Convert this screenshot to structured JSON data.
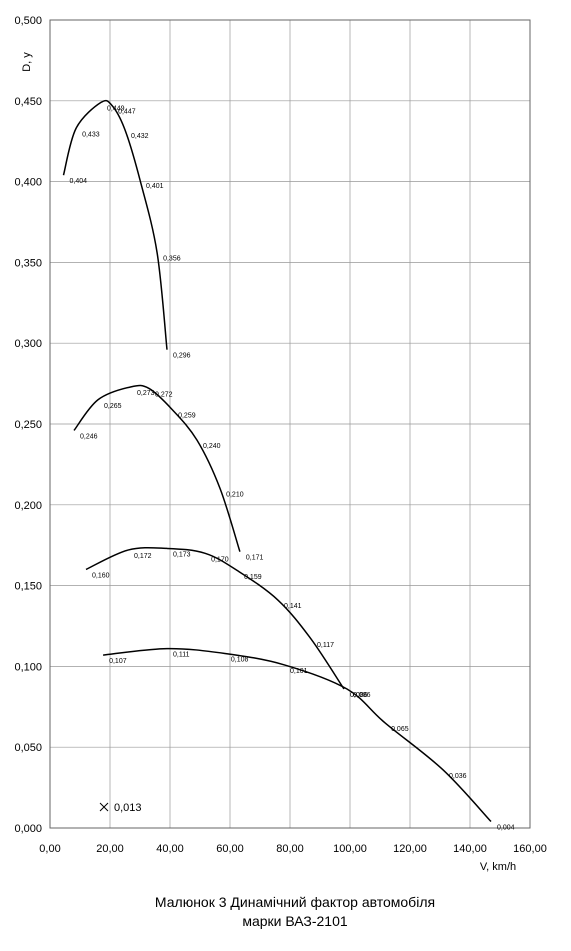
{
  "chart_data": {
    "type": "line",
    "xlabel": "V, km/h",
    "ylabel": "D, у",
    "caption": [
      "Малюнок 3 Динамічний фактор автомобіля",
      "марки ВАЗ-2101"
    ],
    "xlim": [
      0,
      160
    ],
    "ylim": [
      0,
      0.5
    ],
    "grid": true,
    "xticks": [
      {
        "value": 0,
        "label": "0,00"
      },
      {
        "value": 20,
        "label": "20,00"
      },
      {
        "value": 40,
        "label": "40,00"
      },
      {
        "value": 60,
        "label": "60,00"
      },
      {
        "value": 80,
        "label": "80,00"
      },
      {
        "value": 100,
        "label": "100,00"
      },
      {
        "value": 120,
        "label": "120,00"
      },
      {
        "value": 140,
        "label": "140,00"
      },
      {
        "value": 160,
        "label": "160,00"
      }
    ],
    "yticks": [
      {
        "value": 0,
        "label": "0,000"
      },
      {
        "value": 0.05,
        "label": "0,050"
      },
      {
        "value": 0.1,
        "label": "0,100"
      },
      {
        "value": 0.15,
        "label": "0,150"
      },
      {
        "value": 0.2,
        "label": "0,200"
      },
      {
        "value": 0.25,
        "label": "0,250"
      },
      {
        "value": 0.3,
        "label": "0,300"
      },
      {
        "value": 0.35,
        "label": "0,350"
      },
      {
        "value": 0.4,
        "label": "0,400"
      },
      {
        "value": 0.45,
        "label": "0,450"
      },
      {
        "value": 0.5,
        "label": "0,500"
      }
    ],
    "series": [
      {
        "color": "#000000",
        "x": [
          4.5,
          8.7,
          17,
          20.7,
          25,
          30,
          35.7,
          39
        ],
        "values": [
          0.404,
          0.433,
          0.449,
          0.447,
          0.432,
          0.401,
          0.356,
          0.296
        ],
        "value_labels": [
          "0,404",
          "0,433",
          "0,449",
          "0,447",
          "0,432",
          "0,401",
          "0,356",
          "0,296"
        ]
      },
      {
        "color": "#000000",
        "x": [
          8,
          16,
          27,
          33,
          40.7,
          49,
          56.7,
          63.3
        ],
        "values": [
          0.246,
          0.265,
          0.273,
          0.272,
          0.259,
          0.24,
          0.21,
          0.171
        ],
        "value_labels": [
          "0,246",
          "0,265",
          "0,273",
          "0,272",
          "0,259",
          "0,240",
          "0,210",
          "0,171"
        ]
      },
      {
        "color": "#000000",
        "x": [
          12,
          26,
          39,
          51.7,
          62.7,
          76,
          87,
          98
        ],
        "values": [
          0.16,
          0.172,
          0.173,
          0.17,
          0.159,
          0.141,
          0.117,
          0.086
        ],
        "value_labels": [
          "0,160",
          "0,172",
          "0,173",
          "0,170",
          "0,159",
          "0,141",
          "0,117",
          "0,086"
        ]
      },
      {
        "color": "#000000",
        "x": [
          17.7,
          39,
          58.3,
          78,
          99,
          111.7,
          131,
          147
        ],
        "values": [
          0.107,
          0.111,
          0.108,
          0.101,
          0.086,
          0.065,
          0.036,
          0.004
        ],
        "value_labels": [
          "0,107",
          "0,111",
          "0,108",
          "0,101",
          "0,086",
          "0,065",
          "0,036",
          "0,004"
        ]
      }
    ],
    "points": [
      {
        "x": 18,
        "y": 0.013,
        "label": "0,013"
      }
    ]
  }
}
